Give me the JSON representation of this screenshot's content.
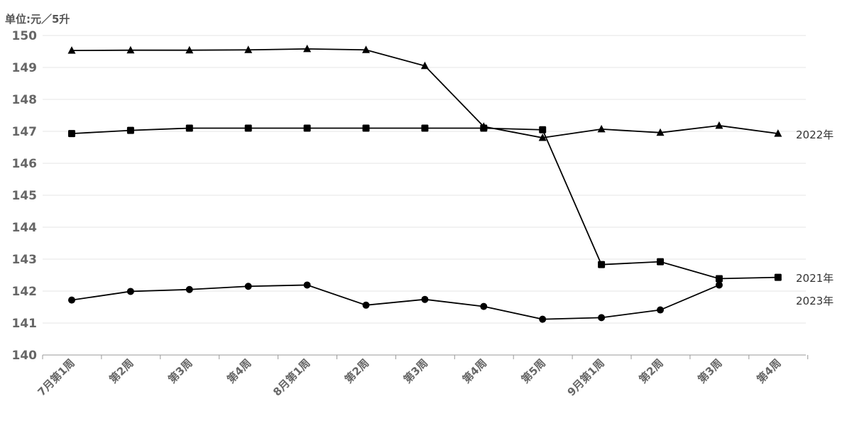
{
  "chart_data": {
    "type": "line",
    "unit_label": "单位:元／5升",
    "ylim": [
      140,
      150
    ],
    "y_ticks": [
      "140",
      "141",
      "142",
      "143",
      "144",
      "145",
      "146",
      "147",
      "148",
      "149",
      "150"
    ],
    "categories": [
      "7月第1周",
      "第2周",
      "第3周",
      "第4周",
      "8月第1周",
      "第2周",
      "第3周",
      "第4周",
      "第5周",
      "9月第1周",
      "第2周",
      "第3周",
      "第4周"
    ],
    "grid": true,
    "series": [
      {
        "name": "2021年",
        "marker": "square",
        "values": [
          146.93,
          147.03,
          147.1,
          147.1,
          147.1,
          147.1,
          147.1,
          147.1,
          147.05,
          142.83,
          142.92,
          142.39,
          142.43
        ]
      },
      {
        "name": "2022年",
        "marker": "triangle",
        "values": [
          149.53,
          149.54,
          149.54,
          149.55,
          149.58,
          149.55,
          149.05,
          147.15,
          146.8,
          147.07,
          146.96,
          147.18,
          146.93
        ]
      },
      {
        "name": "2023年",
        "marker": "circle",
        "values": [
          141.72,
          141.99,
          142.05,
          142.15,
          142.19,
          141.56,
          141.74,
          141.52,
          141.12,
          141.17,
          141.41,
          142.19,
          null
        ]
      }
    ]
  }
}
